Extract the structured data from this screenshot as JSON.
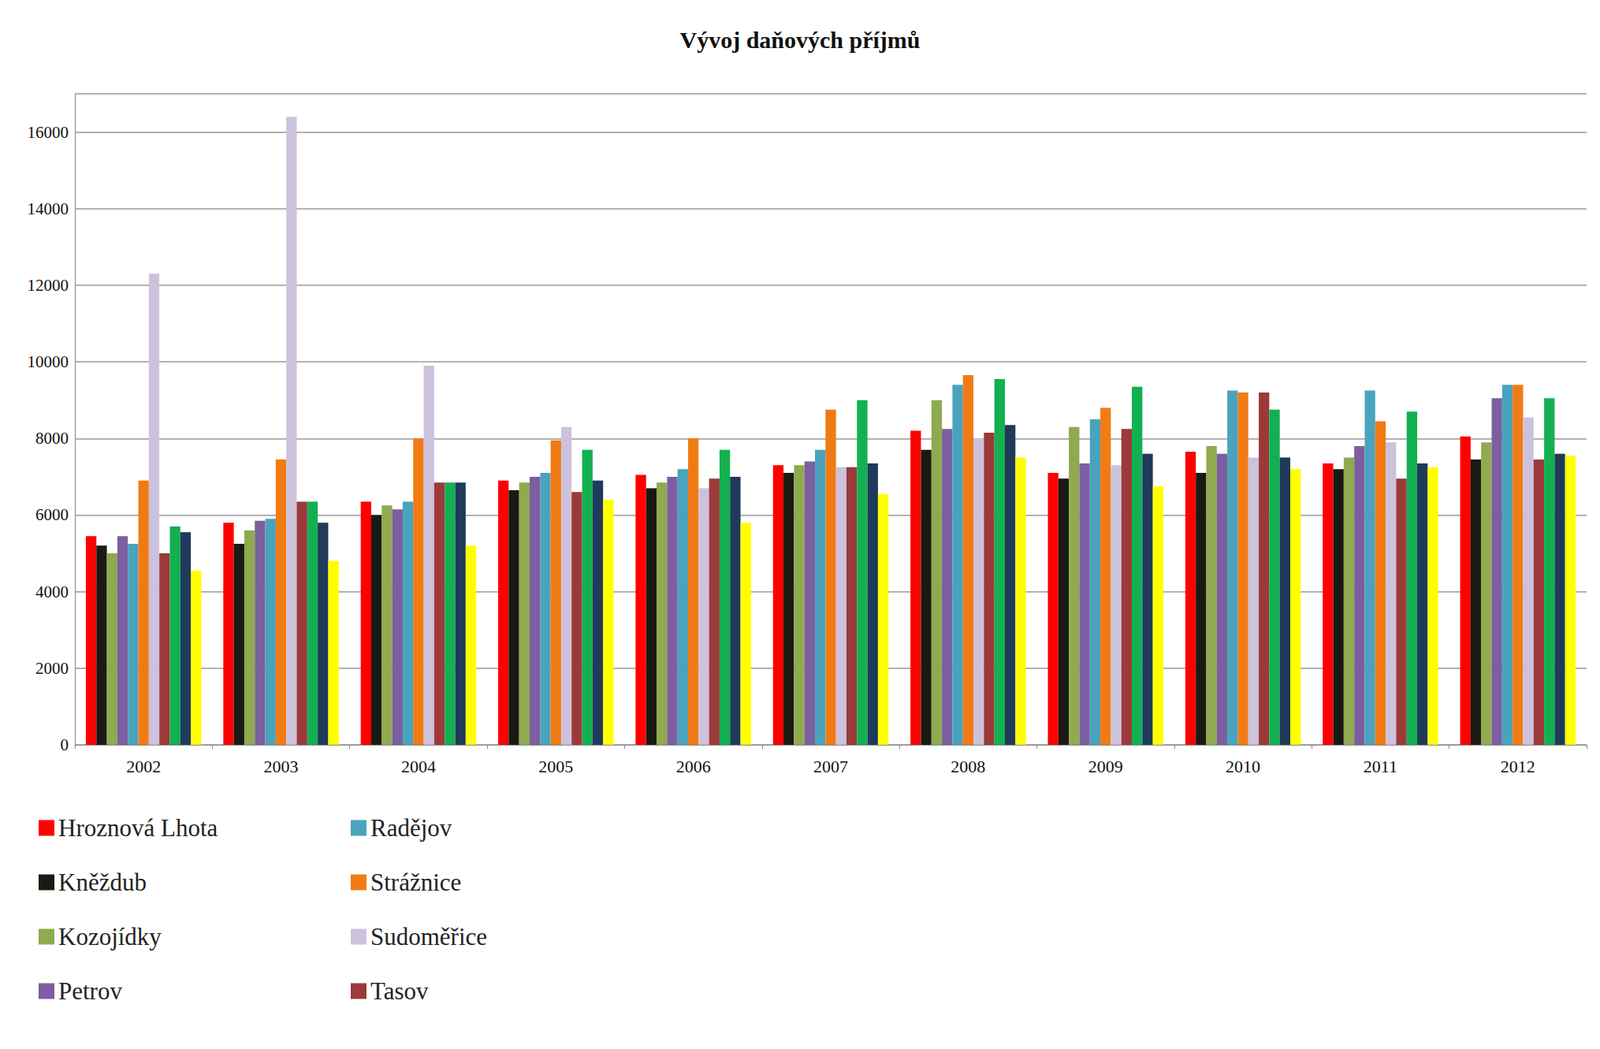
{
  "chart_data": {
    "type": "bar",
    "title": "Vývoj daňových příjmů",
    "categories": [
      "2002",
      "2003",
      "2004",
      "2005",
      "2006",
      "2007",
      "2008",
      "2009",
      "2010",
      "2011",
      "2012"
    ],
    "series": [
      {
        "name": "Hroznová Lhota",
        "color": "#ff0000",
        "values": [
          5450,
          5800,
          6350,
          6900,
          7050,
          7300,
          8200,
          7100,
          7650,
          7350,
          8050
        ]
      },
      {
        "name": "Kněždub",
        "color": "#1a1a12",
        "values": [
          5200,
          5250,
          6000,
          6650,
          6700,
          7100,
          7700,
          6950,
          7100,
          7200,
          7450
        ]
      },
      {
        "name": "Kozojídky",
        "color": "#8faa4f",
        "values": [
          5000,
          5600,
          6250,
          6850,
          6850,
          7300,
          9000,
          8300,
          7800,
          7500,
          7900
        ]
      },
      {
        "name": "Petrov",
        "color": "#7b5fa0",
        "values": [
          5450,
          5850,
          6150,
          7000,
          7000,
          7400,
          8250,
          7350,
          7600,
          7800,
          9050
        ]
      },
      {
        "name": "Radějov",
        "color": "#4aa3bd",
        "values": [
          5250,
          5900,
          6350,
          7100,
          7200,
          7700,
          9400,
          8500,
          9250,
          9250,
          9400
        ]
      },
      {
        "name": "Strážnice",
        "color": "#f07b15",
        "values": [
          6900,
          7450,
          8000,
          7950,
          8000,
          8750,
          9650,
          8800,
          9200,
          8450,
          9400
        ]
      },
      {
        "name": "Sudoměřice",
        "color": "#cdc2dc",
        "values": [
          12300,
          16400,
          9900,
          8300,
          6700,
          7250,
          8000,
          7300,
          7500,
          7900,
          8550
        ]
      },
      {
        "name": "Tasov",
        "color": "#9c3a3a",
        "values": [
          5000,
          6350,
          6850,
          6600,
          6950,
          7250,
          8150,
          8250,
          9200,
          6950,
          7450
        ]
      },
      {
        "color": "#12b050",
        "values": [
          5700,
          6350,
          6850,
          7700,
          7700,
          9000,
          9550,
          9350,
          8750,
          8700,
          9050
        ]
      },
      {
        "color": "#1f3a5a",
        "values": [
          5550,
          5800,
          6850,
          6900,
          7000,
          7350,
          8350,
          7600,
          7500,
          7350,
          7600
        ]
      },
      {
        "color": "#ffff00",
        "values": [
          4550,
          4800,
          5200,
          6400,
          5800,
          6550,
          7500,
          6750,
          7200,
          7250,
          7550
        ]
      }
    ],
    "ylim": [
      0,
      17000
    ],
    "yticks": [
      0,
      2000,
      4000,
      6000,
      8000,
      10000,
      12000,
      14000,
      16000
    ],
    "grid": true,
    "legend": "bottom left"
  }
}
